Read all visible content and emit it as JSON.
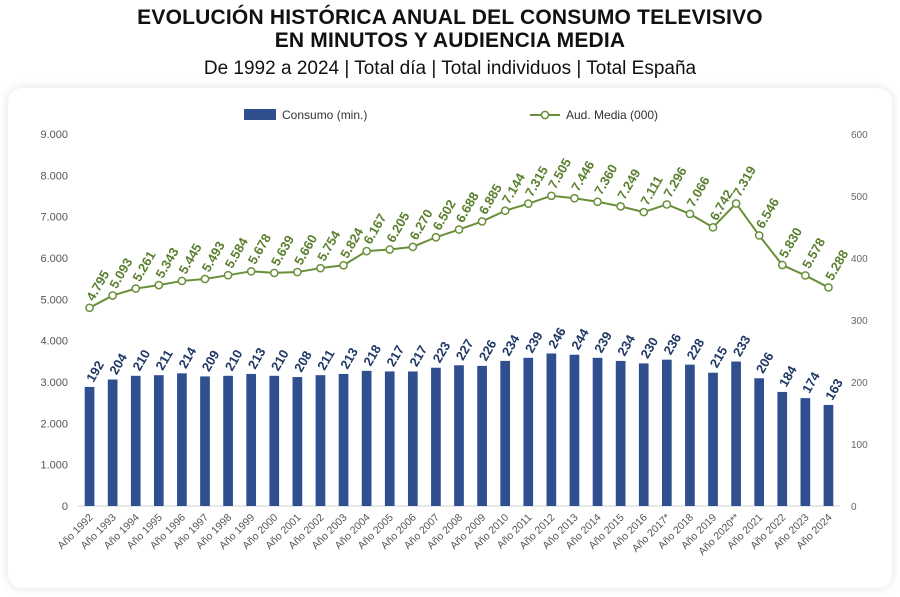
{
  "header": {
    "title_line1": "EVOLUCIÓN HISTÓRICA ANUAL DEL CONSUMO TELEVISIVO",
    "title_line2": "EN MINUTOS Y AUDIENCIA MEDIA",
    "subtitle": "De 1992 a 2024 | Total día | Total individuos | Total España"
  },
  "chart_data": {
    "type": "bar",
    "categories": [
      "Año 1992",
      "Año 1993",
      "Año 1994",
      "Año 1995",
      "Año 1996",
      "Año 1997",
      "Año 1998",
      "Año 1999",
      "Año 2000",
      "Año 2001",
      "Año 2002",
      "Año 2003",
      "Año 2004",
      "Año 2005",
      "Año 2006",
      "Año 2007",
      "Año 2008",
      "Año 2009",
      "Año 2010",
      "Año 2011",
      "Año 2012",
      "Año 2013",
      "Año 2014",
      "Año 2015",
      "Año 2016",
      "Año 2017*",
      "Año 2018",
      "Año 2019",
      "Año 2020**",
      "Año 2021",
      "Año 2022",
      "Año 2023",
      "Año 2024"
    ],
    "series": [
      {
        "name": "Consumo (min.)",
        "type": "bar",
        "axis": "right",
        "color": "#2f4f8f",
        "values": [
          192,
          204,
          210,
          211,
          214,
          209,
          210,
          213,
          210,
          208,
          211,
          213,
          218,
          217,
          217,
          223,
          227,
          226,
          234,
          239,
          246,
          244,
          239,
          234,
          230,
          236,
          228,
          215,
          233,
          206,
          184,
          174,
          163
        ],
        "labels": [
          "192",
          "204",
          "210",
          "211",
          "214",
          "209",
          "210",
          "213",
          "210",
          "208",
          "211",
          "213",
          "218",
          "217",
          "217",
          "223",
          "227",
          "226",
          "234",
          "239",
          "246",
          "244",
          "239",
          "234",
          "230",
          "236",
          "228",
          "215",
          "233",
          "206",
          "184",
          "174",
          "163"
        ]
      },
      {
        "name": "Aud. Media (000)",
        "type": "line",
        "axis": "left",
        "color": "#6a8f3a",
        "values": [
          4795,
          5093,
          5261,
          5343,
          5445,
          5493,
          5584,
          5678,
          5639,
          5660,
          5754,
          5824,
          6167,
          6205,
          6270,
          6502,
          6688,
          6885,
          7144,
          7315,
          7505,
          7446,
          7360,
          7249,
          7111,
          7296,
          7066,
          6742,
          7319,
          6546,
          5830,
          5578,
          5288
        ],
        "labels": [
          "4.795",
          "5.093",
          "5.261",
          "5.343",
          "5.445",
          "5.493",
          "5.584",
          "5.678",
          "5.639",
          "5.660",
          "5.754",
          "5.824",
          "6.167",
          "6.205",
          "6.270",
          "6.502",
          "6.688",
          "6.885",
          "7.144",
          "7.315",
          "7.505",
          "7.446",
          "7.360",
          "7.249",
          "7.111",
          "7.296",
          "7.066",
          "6.742",
          "7.319",
          "6.546",
          "5.830",
          "5.578",
          "5.288"
        ]
      }
    ],
    "left_axis": {
      "ylim": [
        0,
        9000
      ],
      "ticks": [
        "0",
        "1.000",
        "2.000",
        "3.000",
        "4.000",
        "5.000",
        "6.000",
        "7.000",
        "8.000",
        "9.000"
      ]
    },
    "right_axis": {
      "ylim": [
        0,
        600
      ],
      "ticks": [
        "0",
        "100",
        "200",
        "300",
        "400",
        "500",
        "600"
      ]
    },
    "grid": false,
    "legend_position": "top"
  }
}
